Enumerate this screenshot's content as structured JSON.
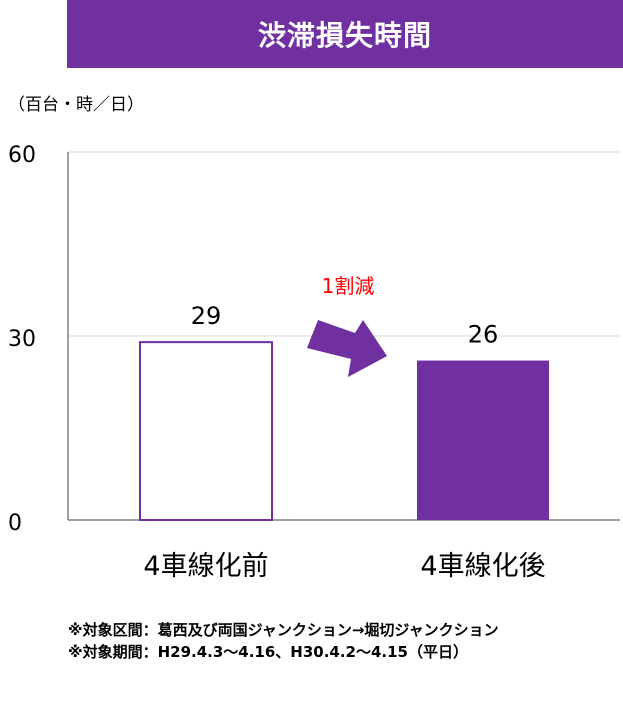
{
  "title": "渋滞損失時間",
  "unit_label": "（百台・時／日）",
  "colors": {
    "accent": "#7030a0",
    "axis": "#808080",
    "grid": "#d9d9d9",
    "reduction_text": "#ff0000"
  },
  "annotation": {
    "reduction_label": "1割減",
    "arrow_icon": "right-arrow-icon"
  },
  "chart_data": {
    "type": "bar",
    "title": "渋滞損失時間",
    "ylabel": "（百台・時／日）",
    "xlabel": "",
    "categories": [
      "4車線化前",
      "4車線化後"
    ],
    "values": [
      29,
      26
    ],
    "value_labels": [
      "29",
      "26"
    ],
    "bar_styles": [
      "outline",
      "filled"
    ],
    "ylim": [
      0,
      60
    ],
    "yticks": [
      0,
      30,
      60
    ],
    "ytick_labels": [
      "0",
      "30",
      "60"
    ],
    "grid": true
  },
  "notes": [
    "※対象区間：葛西及び両国ジャンクション→堀切ジャンクション",
    "※対象期間：H29.4.3～4.16、H30.4.2～4.15（平日）"
  ]
}
